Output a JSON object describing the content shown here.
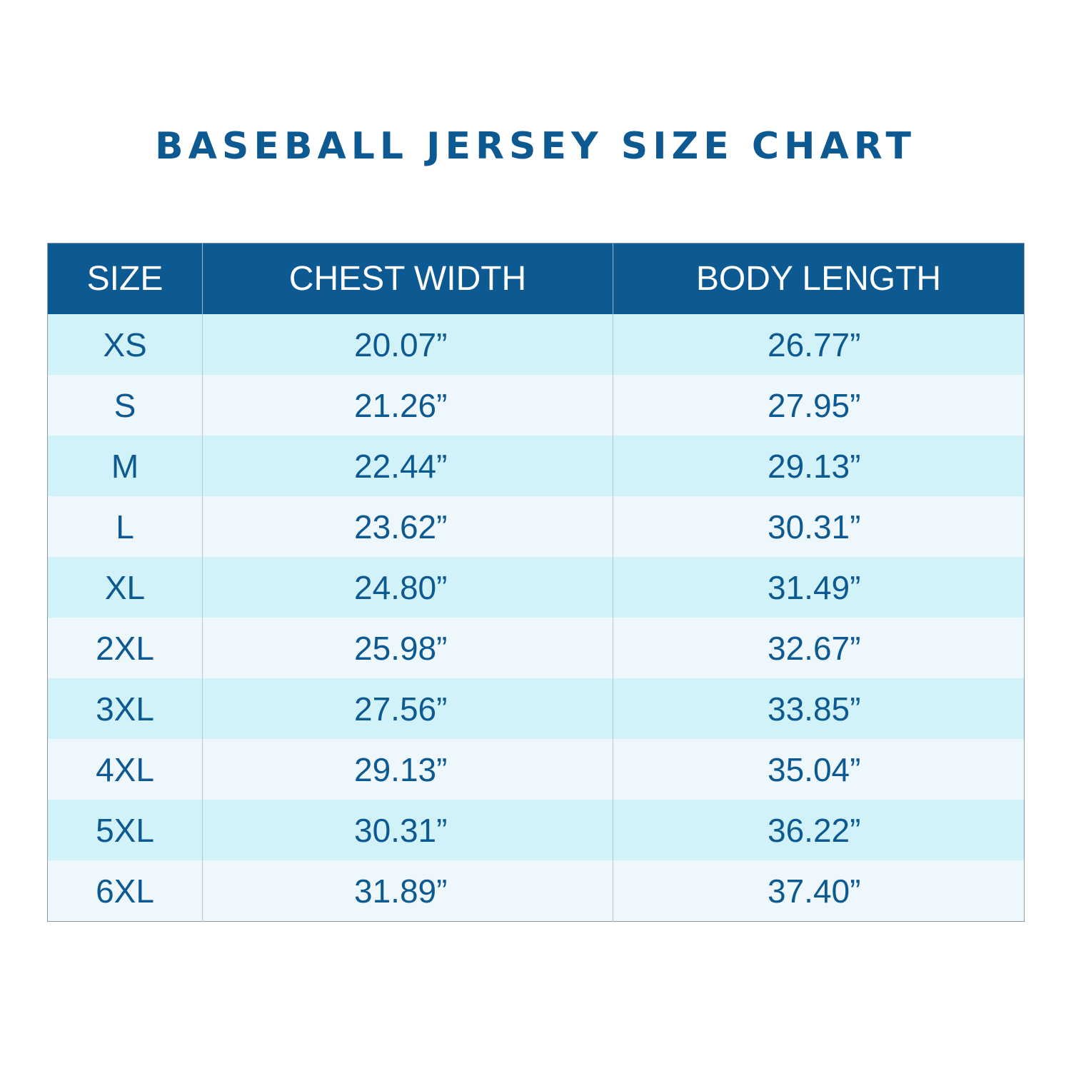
{
  "title": "BASEBALL JERSEY SIZE CHART",
  "table": {
    "headers": [
      "SIZE",
      "CHEST WIDTH",
      "BODY LENGTH"
    ],
    "rows": [
      {
        "size": "XS",
        "chest": "20.07”",
        "body": "26.77”"
      },
      {
        "size": "S",
        "chest": "21.26”",
        "body": "27.95”"
      },
      {
        "size": "M",
        "chest": "22.44”",
        "body": "29.13”"
      },
      {
        "size": "L",
        "chest": "23.62”",
        "body": "30.31”"
      },
      {
        "size": "XL",
        "chest": "24.80”",
        "body": "31.49”"
      },
      {
        "size": "2XL",
        "chest": "25.98”",
        "body": "32.67”"
      },
      {
        "size": "3XL",
        "chest": "27.56”",
        "body": "33.85”"
      },
      {
        "size": "4XL",
        "chest": "29.13”",
        "body": "35.04”"
      },
      {
        "size": "5XL",
        "chest": "30.31”",
        "body": "36.22”"
      },
      {
        "size": "6XL",
        "chest": "31.89”",
        "body": "37.40”"
      }
    ]
  },
  "colors": {
    "header_bg": "#0d5a93",
    "header_text": "#ffffff",
    "body_text": "#0d5a93",
    "row_odd": "#d2f2f9",
    "row_even": "#edf7fc"
  }
}
